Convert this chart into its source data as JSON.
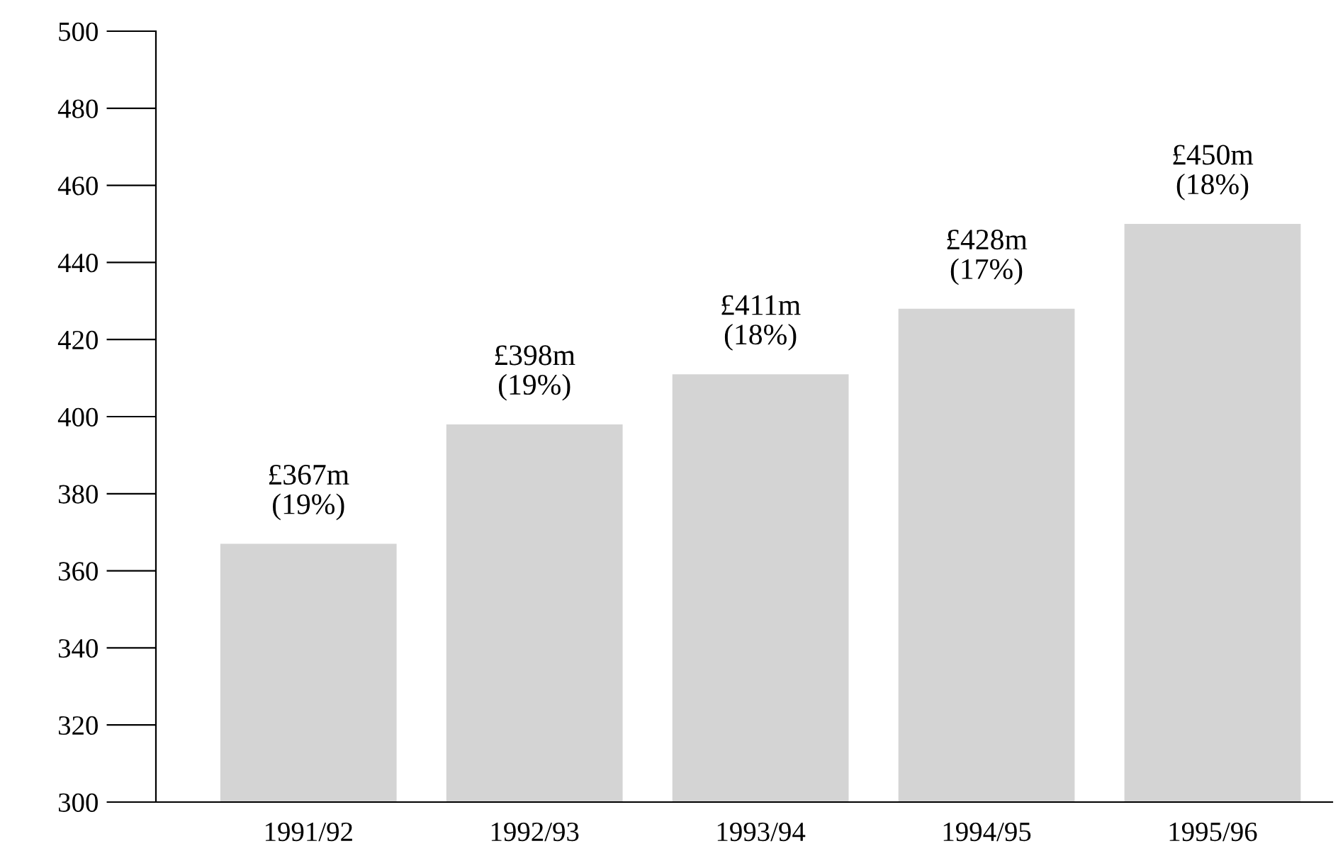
{
  "chart_data": {
    "type": "bar",
    "categories": [
      "1991/92",
      "1992/93",
      "1993/94",
      "1994/95",
      "1995/96"
    ],
    "values": [
      367,
      398,
      411,
      428,
      450
    ],
    "value_labels": [
      "£367m",
      "£398m",
      "£411m",
      "£428m",
      "£450m"
    ],
    "annotations": [
      {
        "text": "(19%)",
        "x": "1991/92",
        "y": 367
      },
      {
        "text": "(19%)",
        "x": "1992/93",
        "y": 398
      },
      {
        "text": "(18%)",
        "x": "1993/94",
        "y": 411
      },
      {
        "text": "(17%)",
        "x": "1994/95",
        "y": 428
      },
      {
        "text": "(18%)",
        "x": "1995/96",
        "y": 450
      }
    ],
    "color": "#d4d4d4",
    "ylim": [
      300,
      500
    ],
    "yticks": [
      300,
      320,
      340,
      360,
      380,
      400,
      420,
      440,
      460,
      480,
      500
    ],
    "grid": false
  }
}
